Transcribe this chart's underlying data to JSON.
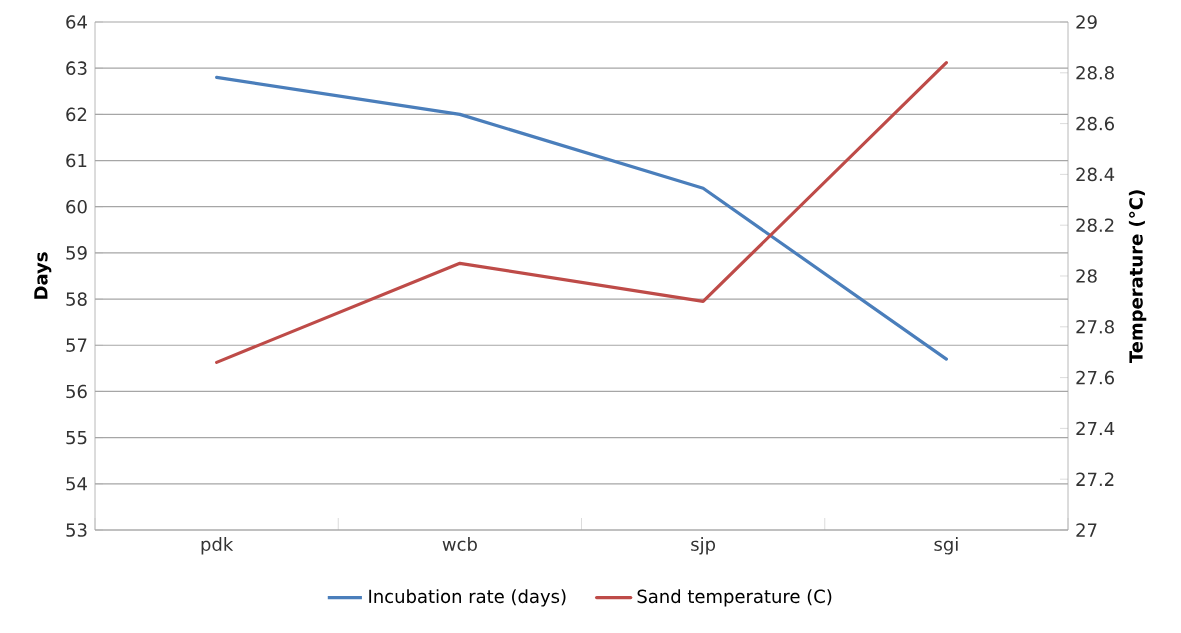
{
  "chart_data": {
    "type": "line",
    "ylabel": "**Days**",
    "y2label": "**Temperature (°C)**",
    "categories": [
      "pdk",
      "wcb",
      "sjp",
      "sgi"
    ],
    "series": [
      {
        "name": "Incubation rate (days)",
        "color": "#4a7ebb",
        "values": [
          62.8,
          62.0,
          60.4,
          56.7
        ]
      },
      {
        "name": "Sand temperature (C)",
        "color": "#be4b48",
        "values": [
          27.66,
          28.05,
          27.9,
          28.84
        ],
        "axis": "y2"
      }
    ],
    "ylim": [
      53,
      64
    ],
    "yticks": [
      53,
      54,
      55,
      56,
      57,
      58,
      59,
      60,
      61,
      62,
      63,
      64
    ],
    "y2lim": [
      27,
      29
    ],
    "y2ticks": [
      27,
      {
        "value": 27.2,
        "label": "27.2"
      },
      {
        "value": 27.4,
        "label": "27.4"
      },
      {
        "value": 27.6,
        "label": "27.6"
      },
      {
        "value": 27.8,
        "label": "27.8"
      },
      28,
      {
        "value": 28.2,
        "label": "28.2"
      },
      {
        "value": 28.4,
        "label": "28.4"
      },
      {
        "value": 28.6,
        "label": "28.6"
      },
      {
        "value": 28.8,
        "label": "28.8"
      },
      29
    ],
    "grid": "y",
    "legend": "bottom",
    "marker": "none",
    "line_style": "solid"
  }
}
